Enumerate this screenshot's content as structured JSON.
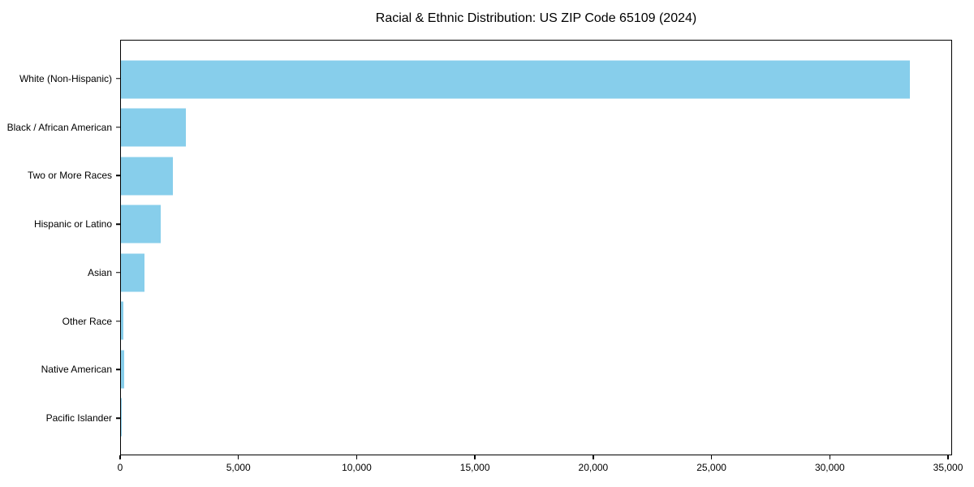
{
  "chart_data": {
    "type": "bar",
    "orientation": "horizontal",
    "title": "Racial & Ethnic Distribution: US ZIP Code 65109 (2024)",
    "categories": [
      "White (Non-Hispanic)",
      "Black / African American",
      "Two or More Races",
      "Hispanic or Latino",
      "Asian",
      "Other Race",
      "Native American",
      "Pacific Islander"
    ],
    "values": [
      33400,
      2750,
      2190,
      1670,
      990,
      115,
      140,
      20
    ],
    "xlabel": "",
    "ylabel": "",
    "xlim": [
      0,
      35170
    ],
    "xticks": [
      0,
      5000,
      10000,
      15000,
      20000,
      25000,
      30000,
      35000
    ],
    "xtick_labels": [
      "0",
      "5,000",
      "10,000",
      "15,000",
      "20,000",
      "25,000",
      "30,000",
      "35,000"
    ],
    "bar_color": "#87CEEB",
    "axis_color": "#000000",
    "background_color": "#ffffff",
    "grid": false,
    "legend": null
  }
}
